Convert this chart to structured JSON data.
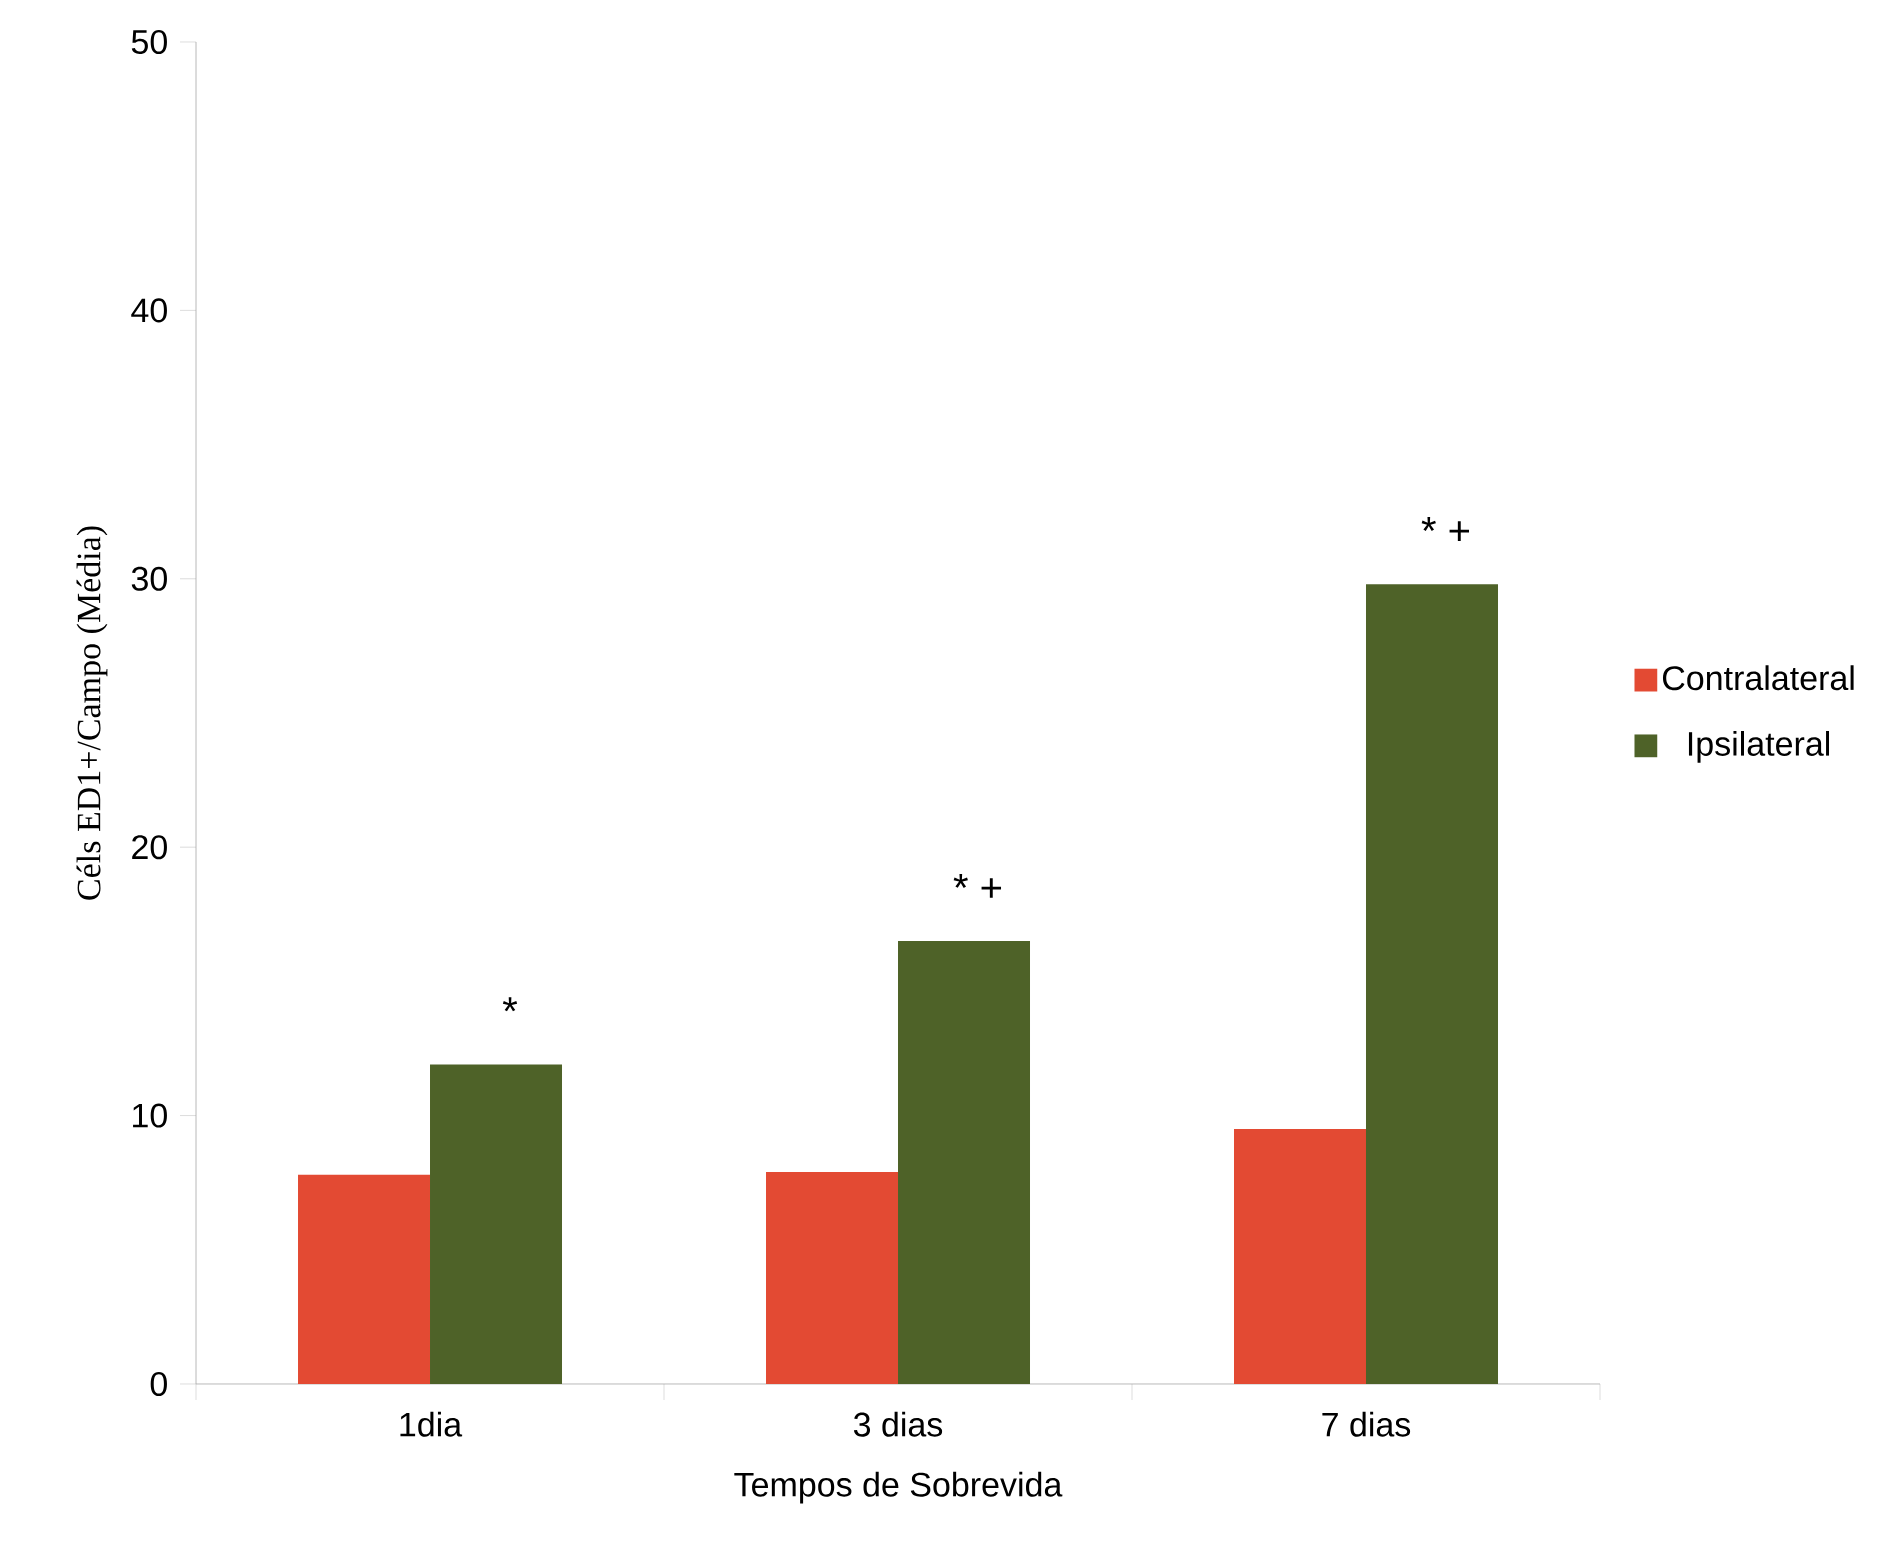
{
  "chart_data": {
    "type": "bar",
    "xlabel": "Tempos de Sobrevida",
    "ylabel": "Céls ED1+/Campo (Média)",
    "categories": [
      "1dia",
      "3 dias",
      "7 dias"
    ],
    "series": [
      {
        "name": "Contralateral",
        "color": "#e34a33",
        "values": [
          7.8,
          7.9,
          9.5
        ]
      },
      {
        "name": "Ipsilateral",
        "color": "#4e6228",
        "values": [
          11.9,
          16.5,
          29.8
        ]
      }
    ],
    "ylim": [
      0,
      50
    ],
    "yticks": [
      0,
      10,
      20,
      30,
      40,
      50
    ],
    "grid": false,
    "legend": "right",
    "annotations": [
      "*",
      "*   +",
      "*   +"
    ]
  }
}
